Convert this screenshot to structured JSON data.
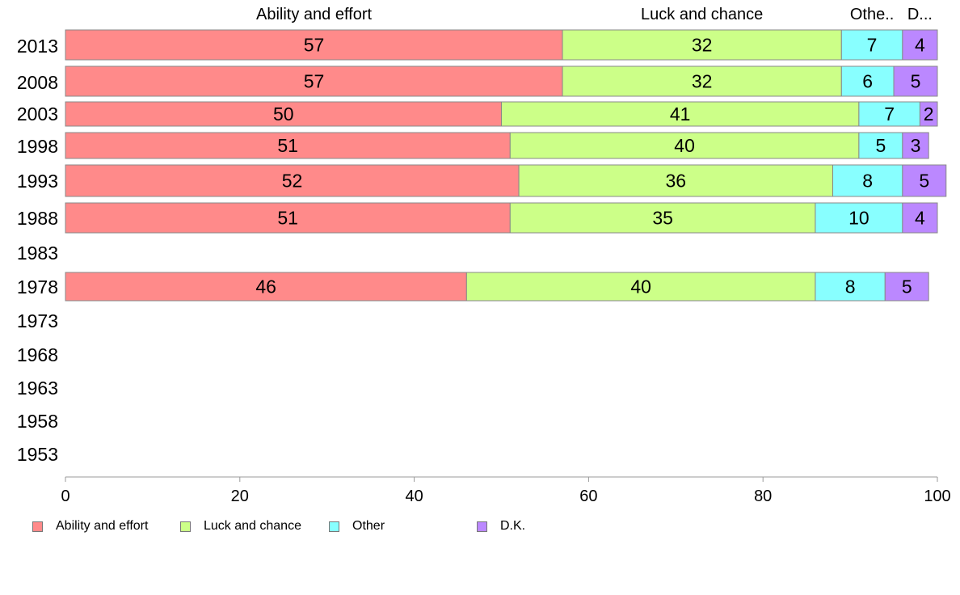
{
  "chart_data": {
    "type": "bar",
    "orientation": "horizontal",
    "stacked": true,
    "categories": [
      "2013",
      "2008",
      "2003",
      "1998",
      "1993",
      "1988",
      "1983",
      "1978",
      "1973",
      "1968",
      "1963",
      "1958",
      "1953"
    ],
    "series": [
      {
        "name": "Ability and effort",
        "color": "#FF8A8A",
        "values": [
          57,
          57,
          50,
          51,
          52,
          51,
          null,
          46,
          null,
          null,
          null,
          null,
          null
        ]
      },
      {
        "name": "Luck and chance",
        "color": "#CCFF88",
        "values": [
          32,
          32,
          41,
          40,
          36,
          35,
          null,
          40,
          null,
          null,
          null,
          null,
          null
        ]
      },
      {
        "name": "Other",
        "color": "#88FFFF",
        "values": [
          7,
          6,
          7,
          5,
          8,
          10,
          null,
          8,
          null,
          null,
          null,
          null,
          null
        ]
      },
      {
        "name": "D.K.",
        "color": "#BB88FF",
        "values": [
          4,
          5,
          2,
          3,
          5,
          4,
          null,
          5,
          null,
          null,
          null,
          null,
          null
        ]
      }
    ],
    "top_labels": [
      "Ability and effort",
      "Luck and chance",
      "Othe..",
      "D..."
    ],
    "xlim": [
      0,
      100
    ],
    "xticks": [
      0,
      20,
      40,
      60,
      80,
      100
    ],
    "grid": false,
    "legend_position": "bottom-left"
  }
}
